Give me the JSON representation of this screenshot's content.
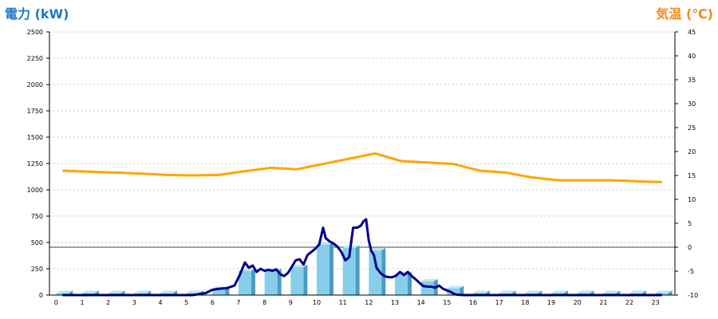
{
  "chart_data": {
    "type": "bar+line",
    "left_axis_label": "電力 (kW)",
    "right_axis_label": "気温 (℃)",
    "categories": [
      "0",
      "1",
      "2",
      "3",
      "4",
      "5",
      "6",
      "7",
      "8",
      "9",
      "10",
      "11",
      "12",
      "13",
      "14",
      "15",
      "16",
      "17",
      "18",
      "19",
      "20",
      "21",
      "22",
      "23"
    ],
    "y_left_ticks": [
      "0",
      "250",
      "500",
      "750",
      "1000",
      "1250",
      "1500",
      "1750",
      "2000",
      "2250",
      "2500"
    ],
    "y_right_ticks": [
      "-10",
      "-5",
      "0",
      "5",
      "10",
      "15",
      "20",
      "25",
      "30",
      "35",
      "40",
      "45"
    ],
    "y_left_range": [
      0,
      2500
    ],
    "y_right_range": [
      -10,
      45
    ],
    "grid": true,
    "series": [
      {
        "type": "bar",
        "color": "#87ceeb",
        "values": [
          20,
          20,
          20,
          20,
          20,
          20,
          60,
          230,
          230,
          265,
          480,
          450,
          425,
          200,
          130,
          65,
          20,
          20,
          20,
          20,
          20,
          20,
          20,
          20
        ]
      },
      {
        "type": "line",
        "color": "#00008b",
        "x": [
          0,
          1,
          2,
          3,
          4,
          5,
          5.5,
          5.75,
          6,
          6.3,
          6.6,
          6.8,
          7,
          7.15,
          7.3,
          7.45,
          7.6,
          7.75,
          7.9,
          8.05,
          8.2,
          8.35,
          8.5,
          8.65,
          8.8,
          8.95,
          9.1,
          9.25,
          9.4,
          9.55,
          9.7,
          9.85,
          10,
          10.1,
          10.25,
          10.4,
          10.55,
          10.7,
          10.85,
          11,
          11.15,
          11.3,
          11.45,
          11.55,
          11.65,
          11.75,
          11.85,
          11.95,
          12.05,
          12.2,
          12.35,
          12.5,
          12.65,
          12.8,
          12.95,
          13.1,
          13.25,
          13.4,
          13.55,
          13.7,
          13.85,
          14,
          14.15,
          14.3,
          14.45,
          14.6,
          14.75,
          14.9,
          15,
          15.1,
          15.25,
          15.4,
          15.5,
          16,
          17,
          18,
          19,
          20,
          21,
          22,
          23
        ],
        "values": [
          0,
          0,
          0,
          0,
          0,
          0,
          20,
          50,
          60,
          65,
          90,
          190,
          310,
          260,
          280,
          220,
          250,
          230,
          240,
          230,
          245,
          200,
          180,
          210,
          270,
          330,
          340,
          290,
          380,
          410,
          440,
          480,
          640,
          540,
          510,
          490,
          460,
          410,
          330,
          360,
          640,
          640,
          660,
          700,
          720,
          520,
          420,
          380,
          260,
          210,
          180,
          170,
          170,
          185,
          220,
          190,
          220,
          180,
          150,
          115,
          85,
          80,
          80,
          70,
          90,
          60,
          45,
          30,
          15,
          5,
          2,
          0,
          0,
          0,
          0,
          0,
          0,
          0,
          0,
          0,
          0
        ]
      },
      {
        "type": "line",
        "color": "#ffa500",
        "x": [
          0,
          1,
          2,
          3,
          4,
          5,
          6,
          7,
          8,
          9,
          10,
          11,
          12,
          13,
          14,
          15,
          16,
          17,
          18,
          19,
          20,
          21,
          22,
          23
        ],
        "values": [
          16.0,
          15.8,
          15.6,
          15.4,
          15.1,
          15.0,
          15.1,
          15.9,
          16.6,
          16.3,
          17.4,
          18.5,
          19.6,
          18.0,
          17.7,
          17.4,
          16.0,
          15.6,
          14.6,
          14.0,
          14.0,
          14.0,
          13.8,
          13.6
        ]
      }
    ]
  }
}
